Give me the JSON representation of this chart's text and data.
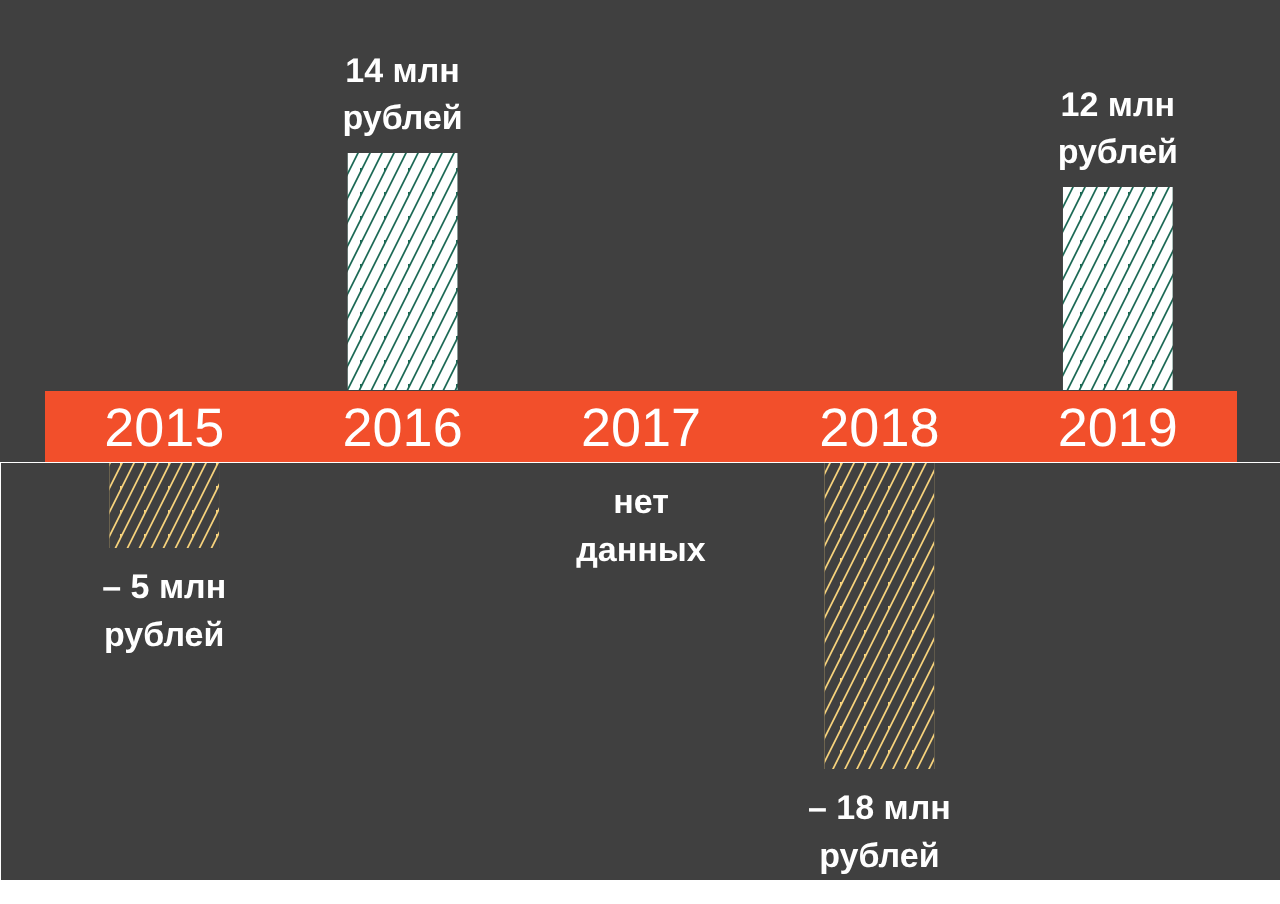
{
  "chart_data": [
    {
      "type": "bar",
      "categories": [
        "2015",
        "2016",
        "2017",
        "2018",
        "2019"
      ],
      "values": [
        null,
        14,
        null,
        null,
        12
      ],
      "colors": [
        "#1d6a56",
        "#1d6a56",
        "#1d6a56",
        "#1d6a56",
        "#1d6a56"
      ],
      "value_labels": [
        null,
        "14 млн\nрублей",
        null,
        null,
        "12 млн\nрублей"
      ]
    },
    {
      "type": "bar",
      "categories": [
        null,
        null,
        null,
        null,
        null
      ],
      "values": [
        -5,
        null,
        null,
        -18,
        null
      ],
      "colors": [
        "#f6d27c",
        "#f6d27c",
        "#f6d27c",
        "#f6d27c",
        "#f6d27c"
      ],
      "value_labels": [
        "– 5 млн\nрублей",
        null,
        "нет\nданных",
        "– 18 млн\nрублей",
        null
      ]
    }
  ]
}
